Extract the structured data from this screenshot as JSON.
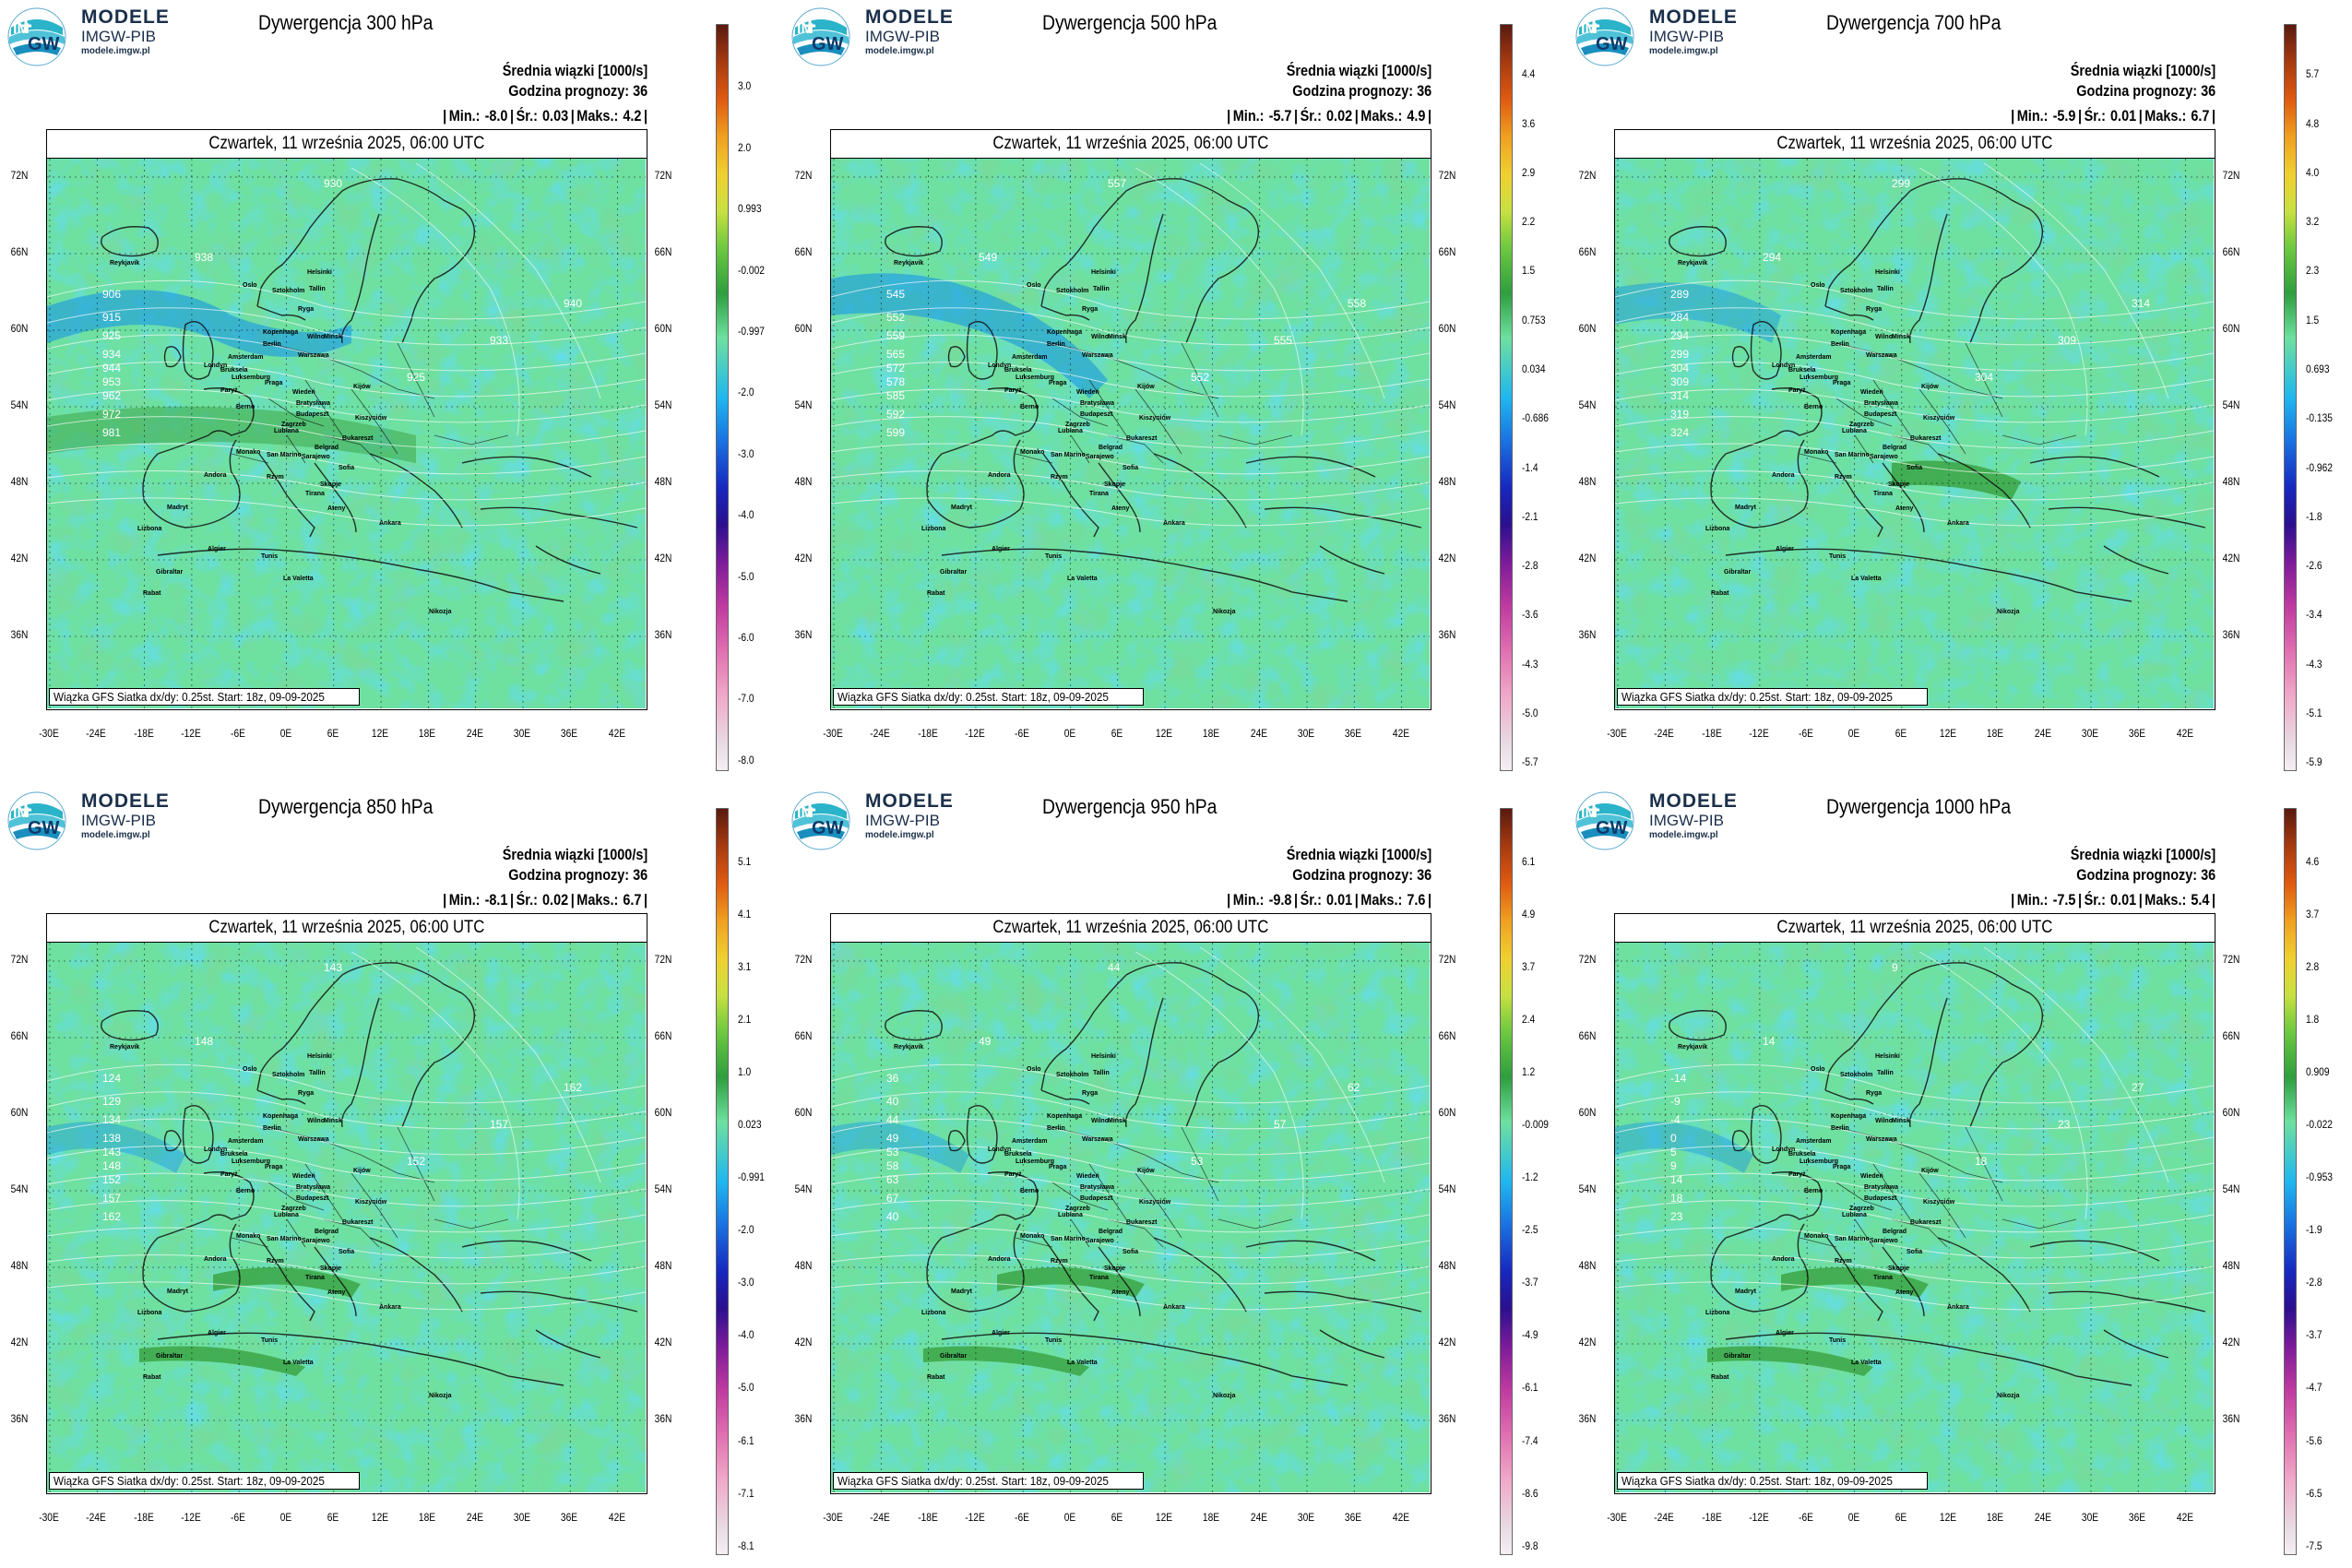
{
  "brand": {
    "line1": "MODELE",
    "line2": "IMGW-PIB",
    "line3": "modele.imgw.pl"
  },
  "common": {
    "info1": "Średnia wiązki [1000/s]",
    "info2": "Godzina prognozy: 36",
    "stats_min": "Min.:",
    "stats_mean": "Śr.:",
    "stats_max": "Maks.:",
    "date": "Czwartek, 11 września 2025, 06:00 UTC",
    "footer": "Wiązka GFS Siatka dx/dy: 0.25st. Start: 18z, 09-09-2025",
    "lat_labels": [
      "72N",
      "66N",
      "60N",
      "54N",
      "48N",
      "42N",
      "36N"
    ],
    "lon_labels": [
      "-30E",
      "-24E",
      "-18E",
      "-12E",
      "-6E",
      "0E",
      "6E",
      "12E",
      "18E",
      "24E",
      "30E",
      "36E",
      "42E"
    ]
  },
  "colors": {
    "high": "#3ea84a",
    "mid": "#6ee0a0",
    "low": "#1eb8f0",
    "deep": "#1090e8"
  },
  "panels": [
    {
      "title": "Dywergencja 300 hPa",
      "min": "-8.0",
      "mean": "0.03",
      "max": "4.2",
      "cbar": [
        "3.0",
        "2.0",
        "0.993",
        "-0.002",
        "-0.997",
        "-2.0",
        "-3.0",
        "-4.0",
        "-5.0",
        "-6.0",
        "-7.0",
        "-8.0"
      ],
      "contours": [
        "906",
        "915",
        "925",
        "934",
        "944",
        "953",
        "962",
        "972",
        "981",
        "930",
        "938",
        "925",
        "933",
        "940"
      ]
    },
    {
      "title": "Dywergencja 500 hPa",
      "min": "-5.7",
      "mean": "0.02",
      "max": "4.9",
      "cbar": [
        "4.4",
        "3.6",
        "2.9",
        "2.2",
        "1.5",
        "0.753",
        "0.034",
        "-0.686",
        "-1.4",
        "-2.1",
        "-2.8",
        "-3.6",
        "-4.3",
        "-5.0",
        "-5.7"
      ],
      "contours": [
        "545",
        "552",
        "559",
        "565",
        "572",
        "578",
        "585",
        "592",
        "599",
        "557",
        "549",
        "552",
        "555",
        "558"
      ]
    },
    {
      "title": "Dywergencja 700 hPa",
      "min": "-5.9",
      "mean": "0.01",
      "max": "6.7",
      "cbar": [
        "5.7",
        "4.8",
        "4.0",
        "3.2",
        "2.3",
        "1.5",
        "0.693",
        "-0.135",
        "-0.962",
        "-1.8",
        "-2.6",
        "-3.4",
        "-4.3",
        "-5.1",
        "-5.9"
      ],
      "contours": [
        "289",
        "284",
        "294",
        "299",
        "304",
        "309",
        "314",
        "319",
        "324",
        "299",
        "294",
        "304",
        "309",
        "314"
      ]
    },
    {
      "title": "Dywergencja 850 hPa",
      "min": "-8.1",
      "mean": "0.02",
      "max": "6.7",
      "cbar": [
        "5.1",
        "4.1",
        "3.1",
        "2.1",
        "1.0",
        "0.023",
        "-0.991",
        "-2.0",
        "-3.0",
        "-4.0",
        "-5.0",
        "-6.1",
        "-7.1",
        "-8.1"
      ],
      "contours": [
        "124",
        "129",
        "134",
        "138",
        "143",
        "148",
        "152",
        "157",
        "162",
        "143",
        "148",
        "152",
        "157",
        "162"
      ]
    },
    {
      "title": "Dywergencja 950 hPa",
      "min": "-9.8",
      "mean": "0.01",
      "max": "7.6",
      "cbar": [
        "6.1",
        "4.9",
        "3.7",
        "2.4",
        "1.2",
        "-0.009",
        "-1.2",
        "-2.5",
        "-3.7",
        "-4.9",
        "-6.1",
        "-7.4",
        "-8.6",
        "-9.8"
      ],
      "contours": [
        "36",
        "40",
        "44",
        "49",
        "53",
        "58",
        "63",
        "67",
        "40",
        "44",
        "49",
        "53",
        "57",
        "62"
      ]
    },
    {
      "title": "Dywergencja 1000 hPa",
      "min": "-7.5",
      "mean": "0.01",
      "max": "5.4",
      "cbar": [
        "4.6",
        "3.7",
        "2.8",
        "1.8",
        "0.909",
        "-0.022",
        "-0.953",
        "-1.9",
        "-2.8",
        "-3.7",
        "-4.7",
        "-5.6",
        "-6.5",
        "-7.5"
      ],
      "contours": [
        "-14",
        "-9",
        "-4",
        "0",
        "5",
        "9",
        "14",
        "18",
        "23",
        "9",
        "14",
        "18",
        "23",
        "27"
      ]
    }
  ],
  "cities": [
    "Oslo",
    "Sztokholm",
    "Helsinki",
    "Tallin",
    "Ryga",
    "Wilno",
    "Mińsk",
    "Kopenhaga",
    "Berlin",
    "Warszawa",
    "Londyn",
    "Amsterdam",
    "Bruksela",
    "Luksemburg",
    "Paryż",
    "Praga",
    "Wiedeń",
    "Bratysława",
    "Budapeszt",
    "Kijów",
    "Kiszyniów",
    "Berno",
    "Lublana",
    "Zagrzeb",
    "Belgrad",
    "Bukareszt",
    "Sarajewo",
    "San Marino",
    "Monako",
    "Andora",
    "Madryt",
    "Lizbona",
    "Rzym",
    "Sofia",
    "Skopje",
    "Tirana",
    "Ateny",
    "Ankara",
    "Algier",
    "Tunis",
    "La Valetta",
    "Gibraltar",
    "Rabat",
    "Nikozja",
    "Reykjavik"
  ]
}
